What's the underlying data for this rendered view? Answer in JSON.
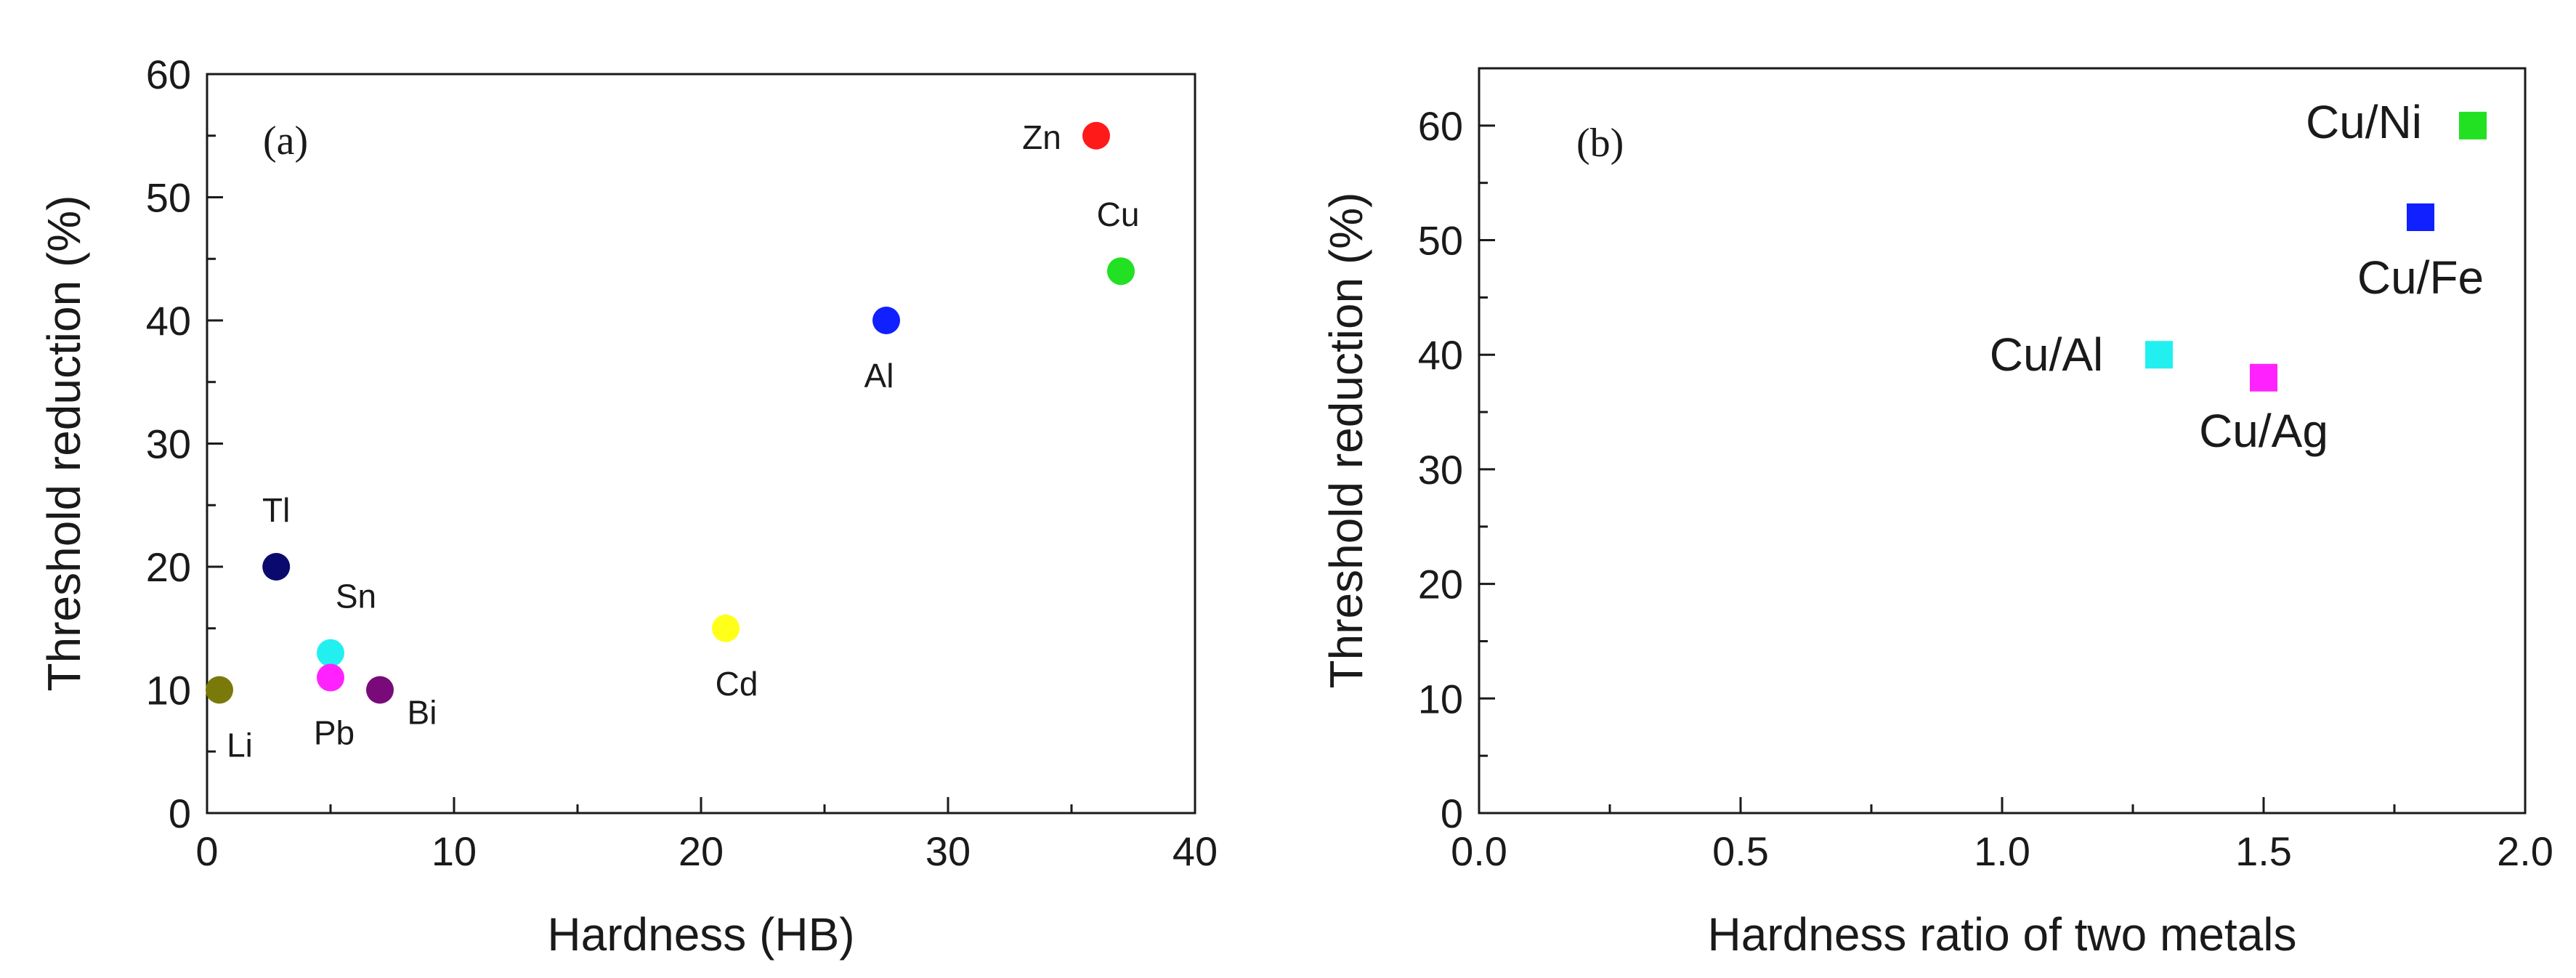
{
  "chart_data": [
    {
      "type": "scatter",
      "panel_tag": "(a)",
      "xlabel": "Hardness (HB)",
      "ylabel": "Threshold reduction (%)",
      "xlim": [
        0,
        40
      ],
      "ylim": [
        0,
        60
      ],
      "xticks": [
        0,
        10,
        20,
        30,
        40
      ],
      "yticks": [
        0,
        10,
        20,
        30,
        40,
        50,
        60
      ],
      "grid": false,
      "marker": "circle",
      "points": [
        {
          "label": "Zn",
          "x": 36,
          "y": 55,
          "color": "#ff1a1a"
        },
        {
          "label": "Cu",
          "x": 37,
          "y": 44,
          "color": "#22e022"
        },
        {
          "label": "Al",
          "x": 27.5,
          "y": 40,
          "color": "#1020ff"
        },
        {
          "label": "Tl",
          "x": 2.8,
          "y": 20,
          "color": "#0a0a6e"
        },
        {
          "label": "Sn",
          "x": 5,
          "y": 13,
          "color": "#22f0f0"
        },
        {
          "label": "Pb",
          "x": 5,
          "y": 11,
          "color": "#ff22ff"
        },
        {
          "label": "Bi",
          "x": 7,
          "y": 10,
          "color": "#7a0a7a"
        },
        {
          "label": "Li",
          "x": 0.5,
          "y": 10,
          "color": "#7a7a0a"
        },
        {
          "label": "Cd",
          "x": 21,
          "y": 15,
          "color": "#ffff1a"
        }
      ]
    },
    {
      "type": "scatter",
      "panel_tag": "(b)",
      "xlabel": "Hardness ratio of two metals",
      "ylabel": "Threshold reduction (%)",
      "xlim": [
        0,
        2
      ],
      "ylim": [
        0,
        65
      ],
      "xticks": [
        "0.0",
        "0.5",
        "1.0",
        "1.5",
        "2.0"
      ],
      "yticks": [
        0,
        10,
        20,
        30,
        40,
        50,
        60
      ],
      "grid": false,
      "marker": "square",
      "points": [
        {
          "label": "Cu/Ni",
          "x": 1.9,
          "y": 60,
          "color": "#22e022"
        },
        {
          "label": "Cu/Fe",
          "x": 1.8,
          "y": 52,
          "color": "#1020ff"
        },
        {
          "label": "Cu/Al",
          "x": 1.3,
          "y": 40,
          "color": "#22f0f0"
        },
        {
          "label": "Cu/Ag",
          "x": 1.5,
          "y": 38,
          "color": "#ff22ff"
        }
      ]
    }
  ]
}
